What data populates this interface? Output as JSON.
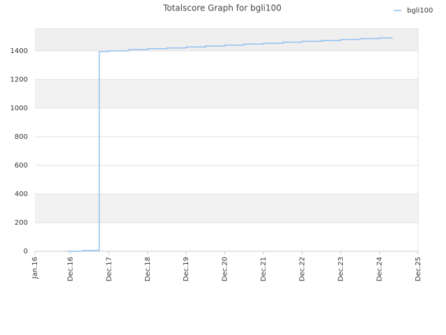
{
  "chart_data": {
    "type": "line",
    "title": "Totalscore Graph for bgli100",
    "x": [
      "2016-11",
      "2017-04",
      "2017-09",
      "2017-12",
      "2018-06",
      "2018-12",
      "2019-06",
      "2019-12",
      "2020-06",
      "2020-12",
      "2021-06",
      "2021-12",
      "2022-06",
      "2022-12",
      "2023-06",
      "2023-12",
      "2024-06",
      "2024-12",
      "2025-04"
    ],
    "series": [
      {
        "name": "bgli100",
        "color": "#90c0f0",
        "values": [
          0,
          5,
          1395,
          1400,
          1408,
          1415,
          1420,
          1427,
          1433,
          1440,
          1447,
          1453,
          1460,
          1466,
          1472,
          1479,
          1485,
          1490,
          1492
        ]
      }
    ],
    "xlim": [
      "2016-01",
      "2025-12"
    ],
    "xticks": [
      {
        "value": "2016-01",
        "label": "Jan.16"
      },
      {
        "value": "2016-12",
        "label": "Dec.16"
      },
      {
        "value": "2017-12",
        "label": "Dec.17"
      },
      {
        "value": "2018-12",
        "label": "Dec.18"
      },
      {
        "value": "2019-12",
        "label": "Dec.19"
      },
      {
        "value": "2020-12",
        "label": "Dec.20"
      },
      {
        "value": "2021-12",
        "label": "Dec.21"
      },
      {
        "value": "2022-12",
        "label": "Dec.22"
      },
      {
        "value": "2023-12",
        "label": "Dec.23"
      },
      {
        "value": "2024-12",
        "label": "Dec.24"
      },
      {
        "value": "2025-12",
        "label": "Dec.25"
      }
    ],
    "ylim": [
      0,
      1560
    ],
    "yticks": [
      0,
      200,
      400,
      600,
      800,
      1000,
      1200,
      1400
    ],
    "grid": true,
    "step": true,
    "legend": "top-right"
  }
}
